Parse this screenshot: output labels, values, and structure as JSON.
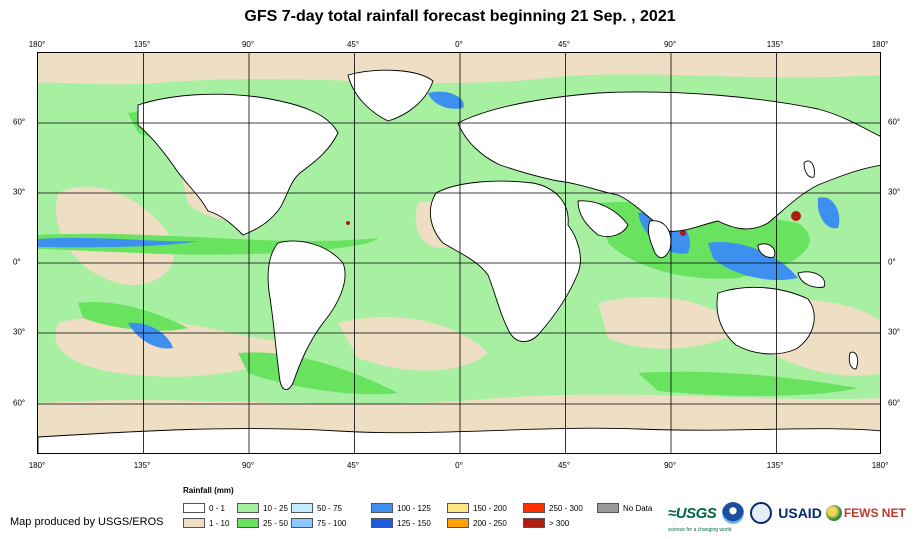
{
  "title": "GFS 7-day total rainfall forecast beginning 21 Sep. , 2021",
  "lon_ticks": [
    "180°",
    "135°",
    "90°",
    "45°",
    "0°",
    "45°",
    "90°",
    "135°",
    "180°"
  ],
  "lat_ticks": [
    "60°",
    "30°",
    "0°",
    "30°",
    "60°"
  ],
  "legend": {
    "title": "Rainfall (mm)",
    "items": [
      {
        "label": "0 - 1",
        "color": "#ffffff"
      },
      {
        "label": "1 - 10",
        "color": "#eedec3"
      },
      {
        "label": "10 - 25",
        "color": "#a7f0a2"
      },
      {
        "label": "25 - 50",
        "color": "#69e35f"
      },
      {
        "label": "50 - 75",
        "color": "#bfeeff"
      },
      {
        "label": "75 - 100",
        "color": "#8cc8ff"
      },
      {
        "label": "100 - 125",
        "color": "#3d8ff0"
      },
      {
        "label": "125 - 150",
        "color": "#1f5ae0"
      },
      {
        "label": "150 - 200",
        "color": "#ffe680"
      },
      {
        "label": "200 - 250",
        "color": "#ffa000"
      },
      {
        "label": "250 - 300",
        "color": "#ff3000"
      },
      {
        "label": "> 300",
        "color": "#b01a10"
      },
      {
        "label": "No Data",
        "color": "#999999"
      }
    ]
  },
  "credit": "Map produced by USGS/EROS",
  "logos": {
    "usgs": "≈USGS",
    "usgs_tagline": "science for a changing world",
    "usaid": "USAID",
    "fews": "FEWS NET"
  },
  "colors": {
    "ocean_light": "#a7f0a2",
    "dry": "#eedec3",
    "land": "#ffffff",
    "heavy": "#3d8ff0"
  }
}
